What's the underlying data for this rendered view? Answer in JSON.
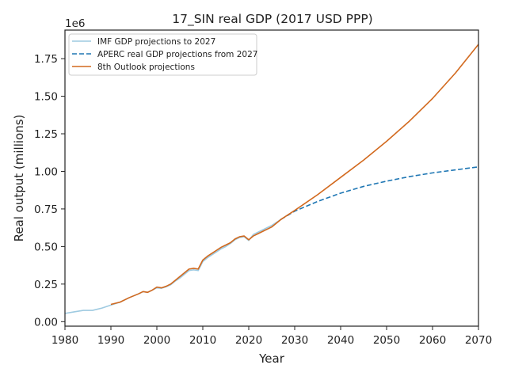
{
  "chart_data": {
    "type": "line",
    "title": "17_SIN real GDP (2017 USD PPP)",
    "xlabel": "Year",
    "ylabel": "Real output (millions)",
    "offset_label": "1e6",
    "xlim": [
      1980,
      2070
    ],
    "ylim": [
      -30000,
      1940000
    ],
    "x_ticks": [
      1980,
      1990,
      2000,
      2010,
      2020,
      2030,
      2040,
      2050,
      2060,
      2070
    ],
    "y_ticks": [
      0,
      250000,
      500000,
      750000,
      1000000,
      1250000,
      1500000,
      1750000
    ],
    "y_tick_labels": [
      "0.00",
      "0.25",
      "0.50",
      "0.75",
      "1.00",
      "1.25",
      "1.50",
      "1.75"
    ],
    "grid": false,
    "legend_position": "upper-left",
    "series": [
      {
        "name": "IMF GDP projections to 2027",
        "color": "#9ecae1",
        "style": "solid",
        "x": [
          1980,
          1982,
          1984,
          1986,
          1988,
          1990,
          1992,
          1994,
          1996,
          1997,
          1998,
          1999,
          2000,
          2001,
          2002,
          2003,
          2004,
          2005,
          2006,
          2007,
          2008,
          2009,
          2010,
          2011,
          2012,
          2013,
          2014,
          2015,
          2016,
          2017,
          2018,
          2019,
          2020,
          2021,
          2022,
          2023,
          2024,
          2025,
          2026,
          2027
        ],
        "y": [
          55000,
          65000,
          75000,
          75000,
          90000,
          110000,
          130000,
          160000,
          185000,
          200000,
          195000,
          210000,
          225000,
          222000,
          232000,
          245000,
          270000,
          290000,
          315000,
          340000,
          345000,
          340000,
          400000,
          425000,
          445000,
          465000,
          485000,
          500000,
          520000,
          545000,
          560000,
          565000,
          540000,
          580000,
          595000,
          610000,
          625000,
          640000,
          660000,
          680000
        ]
      },
      {
        "name": "APERC real GDP projections from 2027",
        "color": "#1f77b4",
        "style": "dashed",
        "x": [
          2027,
          2030,
          2035,
          2040,
          2045,
          2050,
          2055,
          2060,
          2065,
          2070
        ],
        "y": [
          680000,
          735000,
          800000,
          855000,
          900000,
          935000,
          965000,
          990000,
          1010000,
          1030000
        ]
      },
      {
        "name": "8th Outlook projections",
        "color": "#d2691e",
        "style": "solid",
        "x": [
          1990,
          1992,
          1994,
          1996,
          1997,
          1998,
          1999,
          2000,
          2001,
          2002,
          2003,
          2004,
          2005,
          2006,
          2007,
          2008,
          2009,
          2010,
          2011,
          2012,
          2013,
          2014,
          2015,
          2016,
          2017,
          2018,
          2019,
          2020,
          2021,
          2022,
          2023,
          2024,
          2025,
          2026,
          2027,
          2030,
          2035,
          2040,
          2045,
          2050,
          2055,
          2060,
          2065,
          2070
        ],
        "y": [
          115000,
          130000,
          160000,
          185000,
          200000,
          195000,
          210000,
          230000,
          225000,
          235000,
          250000,
          275000,
          300000,
          325000,
          350000,
          355000,
          350000,
          410000,
          435000,
          455000,
          475000,
          495000,
          510000,
          525000,
          550000,
          565000,
          570000,
          545000,
          570000,
          585000,
          600000,
          615000,
          630000,
          655000,
          680000,
          740000,
          845000,
          960000,
          1075000,
          1200000,
          1335000,
          1485000,
          1655000,
          1845000
        ]
      }
    ]
  }
}
